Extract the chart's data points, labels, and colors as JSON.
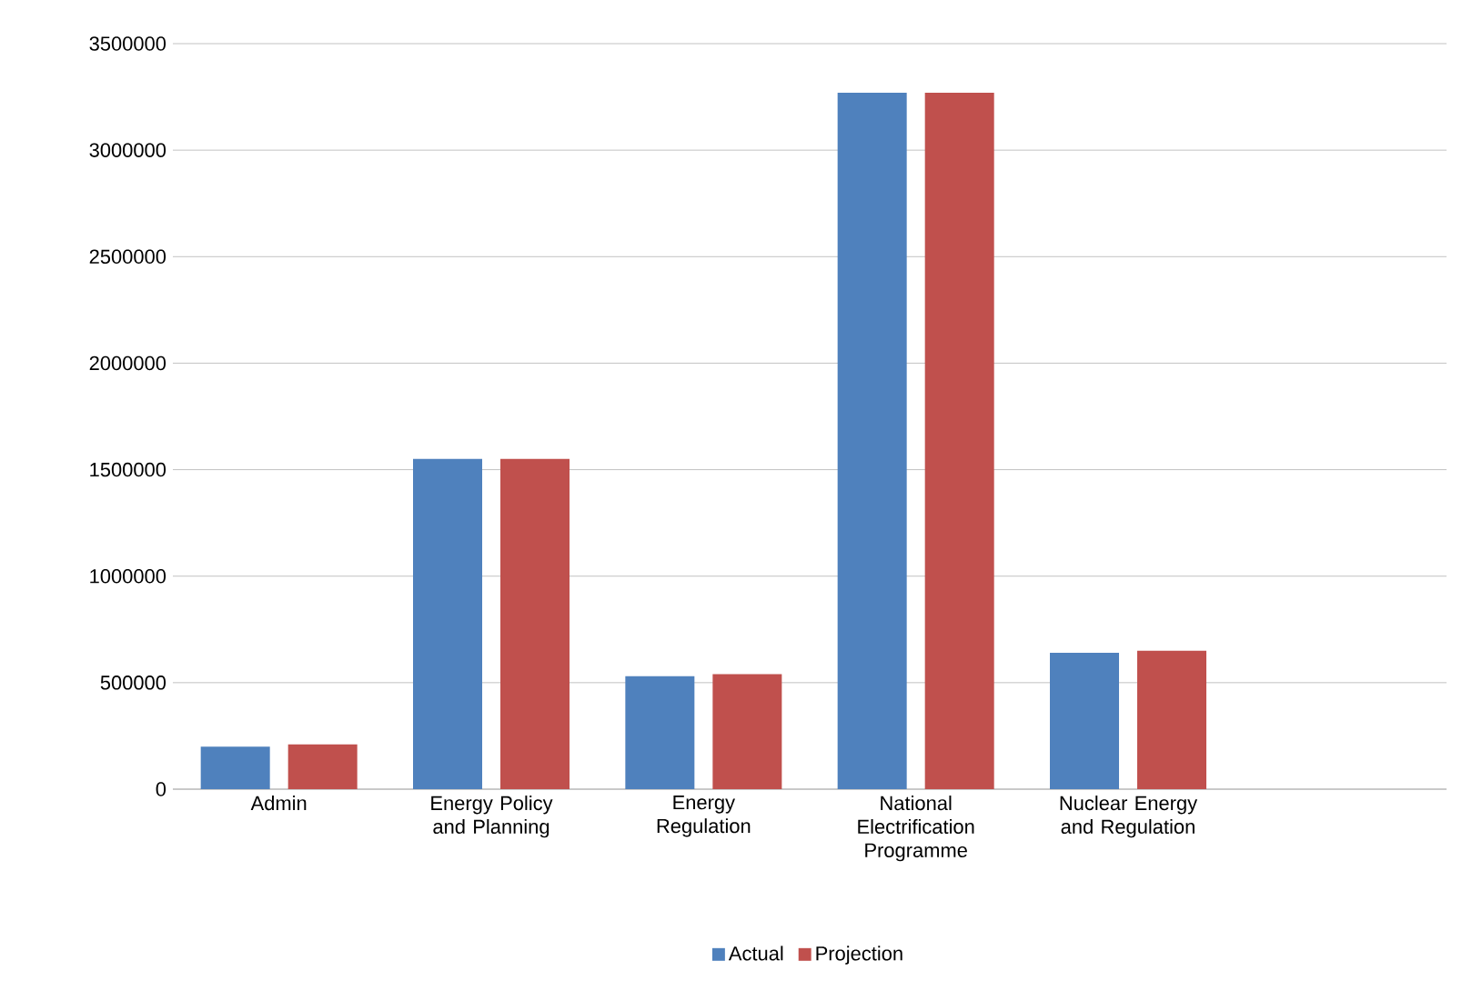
{
  "chart_data": {
    "type": "bar",
    "categories": [
      "Admin",
      "Energy Policy and Planning",
      "Energy Regulation",
      "National Electrification Programme",
      "Nuclear Energy and Regulation",
      null
    ],
    "series": [
      {
        "name": "Actual",
        "color": "#4f81bd",
        "values": [
          200000,
          1550000,
          530000,
          3270000,
          640000,
          null
        ]
      },
      {
        "name": "Projection",
        "color": "#c0504d",
        "values": [
          210000,
          1550000,
          540000,
          3270000,
          650000,
          null
        ]
      }
    ],
    "ylim": [
      0,
      3500000
    ],
    "yticks": [
      0,
      500000,
      1000000,
      1500000,
      2000000,
      2500000,
      3000000,
      3500000
    ],
    "grid": "y",
    "legend": "bottom"
  }
}
